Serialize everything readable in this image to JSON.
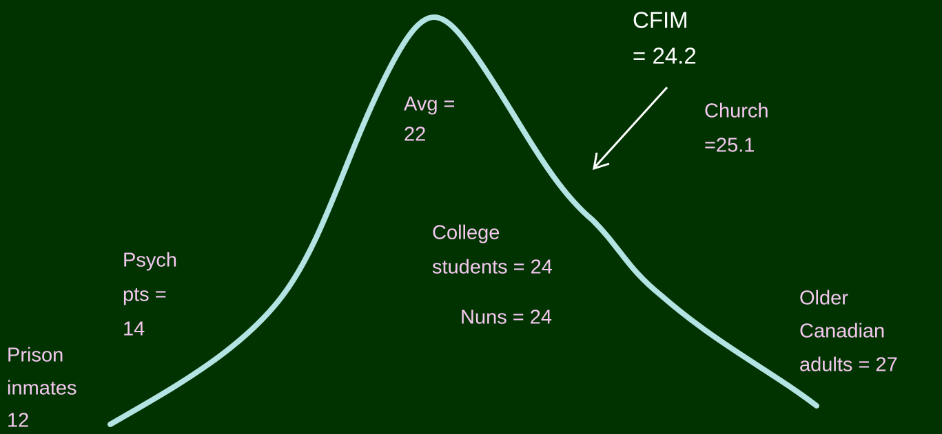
{
  "labels": {
    "cfim": [
      "CFIM",
      "= 24.2"
    ],
    "church": [
      "Church",
      "=25.1"
    ],
    "avg": [
      "Avg =",
      "22"
    ],
    "college": [
      "College",
      "students = 24"
    ],
    "nuns": [
      "Nuns = 24"
    ],
    "psych": [
      "Psych",
      "pts =",
      "14"
    ],
    "prison": [
      "Prison",
      "inmates",
      "12"
    ],
    "older": [
      "Older",
      "Canadian",
      "adults = 27"
    ]
  }
}
